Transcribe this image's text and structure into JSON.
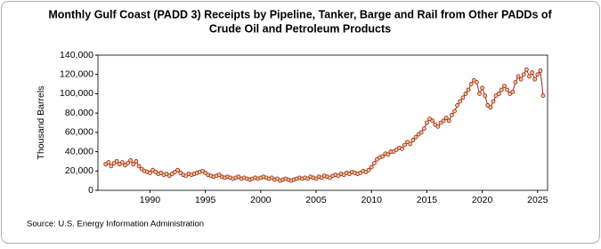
{
  "chart_data": {
    "type": "line",
    "title": [
      "Monthly Gulf Coast (PADD 3) Receipts by Pipeline, Tanker, Barge and Rail from Other PADDs of",
      "Crude Oil and Petroleum Products"
    ],
    "y_label": "Thousand Barrels",
    "source": "Source: U.S. Energy Information Administration",
    "color": "#a01c1c",
    "marker_fill": "#e8c98a",
    "grid": false,
    "xlim": [
      1985.3,
      2025.9
    ],
    "xticks": [
      1990,
      1995,
      2000,
      2005,
      2010,
      2015,
      2020,
      2025
    ],
    "ylim": [
      0,
      140000
    ],
    "yticks": [
      0,
      {
        "value": 20000,
        "label": "20,000"
      },
      {
        "value": 40000,
        "label": "40,000"
      },
      {
        "value": 60000,
        "label": "60,000"
      },
      {
        "value": 80000,
        "label": "80,000"
      },
      {
        "value": 100000,
        "label": "100,000"
      },
      {
        "value": 120000,
        "label": "120,000"
      },
      {
        "value": 140000,
        "label": "140,000"
      }
    ],
    "x": [
      1986,
      1986.25,
      1986.5,
      1986.75,
      1987,
      1987.25,
      1987.5,
      1987.75,
      1988,
      1988.25,
      1988.5,
      1988.75,
      1989,
      1989.25,
      1989.5,
      1989.75,
      1990,
      1990.25,
      1990.5,
      1990.75,
      1991,
      1991.25,
      1991.5,
      1991.75,
      1992,
      1992.25,
      1992.5,
      1992.75,
      1993,
      1993.25,
      1993.5,
      1993.75,
      1994,
      1994.25,
      1994.5,
      1994.75,
      1995,
      1995.25,
      1995.5,
      1995.75,
      1996,
      1996.25,
      1996.5,
      1996.75,
      1997,
      1997.25,
      1997.5,
      1997.75,
      1998,
      1998.25,
      1998.5,
      1998.75,
      1999,
      1999.25,
      1999.5,
      1999.75,
      2000,
      2000.25,
      2000.5,
      2000.75,
      2001,
      2001.25,
      2001.5,
      2001.75,
      2002,
      2002.25,
      2002.5,
      2002.75,
      2003,
      2003.25,
      2003.5,
      2003.75,
      2004,
      2004.25,
      2004.5,
      2004.75,
      2005,
      2005.25,
      2005.5,
      2005.75,
      2006,
      2006.25,
      2006.5,
      2006.75,
      2007,
      2007.25,
      2007.5,
      2007.75,
      2008,
      2008.25,
      2008.5,
      2008.75,
      2009,
      2009.25,
      2009.5,
      2009.75,
      2010,
      2010.25,
      2010.5,
      2010.75,
      2011,
      2011.25,
      2011.5,
      2011.75,
      2012,
      2012.25,
      2012.5,
      2012.75,
      2013,
      2013.25,
      2013.5,
      2013.75,
      2014,
      2014.25,
      2014.5,
      2014.75,
      2015,
      2015.25,
      2015.5,
      2015.75,
      2016,
      2016.25,
      2016.5,
      2016.75,
      2017,
      2017.25,
      2017.5,
      2017.75,
      2018,
      2018.25,
      2018.5,
      2018.75,
      2019,
      2019.25,
      2019.5,
      2019.75,
      2020,
      2020.25,
      2020.5,
      2020.75,
      2021,
      2021.25,
      2021.5,
      2021.75,
      2022,
      2022.25,
      2022.5,
      2022.75,
      2023,
      2023.25,
      2023.5,
      2023.75,
      2024,
      2024.25,
      2024.5,
      2024.75,
      2025,
      2025.25,
      2025.5
    ],
    "values": [
      27000,
      29000,
      25000,
      28000,
      30000,
      27000,
      29000,
      26000,
      28000,
      31000,
      27000,
      30000,
      25000,
      22000,
      20000,
      19000,
      18000,
      21000,
      19000,
      17000,
      18000,
      16000,
      17000,
      15000,
      17000,
      19000,
      21000,
      18000,
      16000,
      15000,
      17000,
      16000,
      17000,
      18000,
      19000,
      20000,
      18000,
      16000,
      15000,
      14000,
      15000,
      16000,
      14000,
      13000,
      14000,
      13000,
      12000,
      13000,
      14000,
      12000,
      13000,
      12000,
      11000,
      12000,
      13000,
      12000,
      13000,
      14000,
      13000,
      12000,
      13000,
      11000,
      12000,
      10000,
      11000,
      12000,
      11000,
      10000,
      11000,
      12000,
      13000,
      12000,
      13000,
      12000,
      14000,
      13000,
      12000,
      14000,
      13000,
      15000,
      14000,
      13000,
      15000,
      16000,
      15000,
      17000,
      16000,
      18000,
      17000,
      19000,
      18000,
      17000,
      18000,
      20000,
      19000,
      21000,
      24000,
      28000,
      32000,
      34000,
      35000,
      38000,
      37000,
      40000,
      40000,
      42000,
      44000,
      43000,
      47000,
      50000,
      48000,
      52000,
      55000,
      58000,
      60000,
      64000,
      70000,
      74000,
      72000,
      68000,
      66000,
      70000,
      72000,
      75000,
      72000,
      78000,
      82000,
      88000,
      92000,
      96000,
      100000,
      104000,
      110000,
      114000,
      112000,
      100000,
      106000,
      98000,
      88000,
      86000,
      92000,
      98000,
      100000,
      104000,
      108000,
      104000,
      100000,
      102000,
      112000,
      118000,
      115000,
      120000,
      125000,
      118000,
      122000,
      115000,
      120000,
      124000,
      98000
    ]
  }
}
